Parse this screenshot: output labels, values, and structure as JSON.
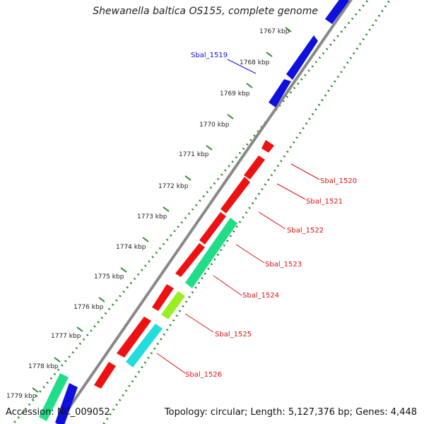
{
  "title": "Shewanella baltica OS155, complete genome",
  "footer": {
    "accession": "Accession: NC_009052",
    "topology": "Topology: circular; Length: 5,127,376 bp; Genes: 4,448"
  },
  "colors": {
    "backbone": "#888888",
    "dots": "#2e8b2e",
    "forward_gene": "#1010dd",
    "reverse_gene": "#ee1111",
    "teal_gene": "#22dd88",
    "cyan_gene": "#22dddd",
    "lime_gene": "#99ee22",
    "label_blue": "#1010dd",
    "label_red": "#dd1111"
  },
  "ticks": [
    {
      "label": "1767 kbp"
    },
    {
      "label": "1768 kbp"
    },
    {
      "label": "1769 kbp"
    },
    {
      "label": "1770 kbp"
    },
    {
      "label": "1771 kbp"
    },
    {
      "label": "1772 kbp"
    },
    {
      "label": "1773 kbp"
    },
    {
      "label": "1774 kbp"
    },
    {
      "label": "1775 kbp"
    },
    {
      "label": "1776 kbp"
    },
    {
      "label": "1777 kbp"
    },
    {
      "label": "1778 kbp"
    },
    {
      "label": "1779 kbp"
    }
  ],
  "gene_labels": [
    {
      "text": "Sbal_1519",
      "color": "label_blue"
    },
    {
      "text": "Sbal_1520",
      "color": "label_red"
    },
    {
      "text": "Sbal_1521",
      "color": "label_red"
    },
    {
      "text": "Sbal_1522",
      "color": "label_red"
    },
    {
      "text": "Sbal_1523",
      "color": "label_red"
    },
    {
      "text": "Sbal_1524",
      "color": "label_red"
    },
    {
      "text": "Sbal_1525",
      "color": "label_red"
    },
    {
      "text": "Sbal_1526",
      "color": "label_red"
    }
  ]
}
